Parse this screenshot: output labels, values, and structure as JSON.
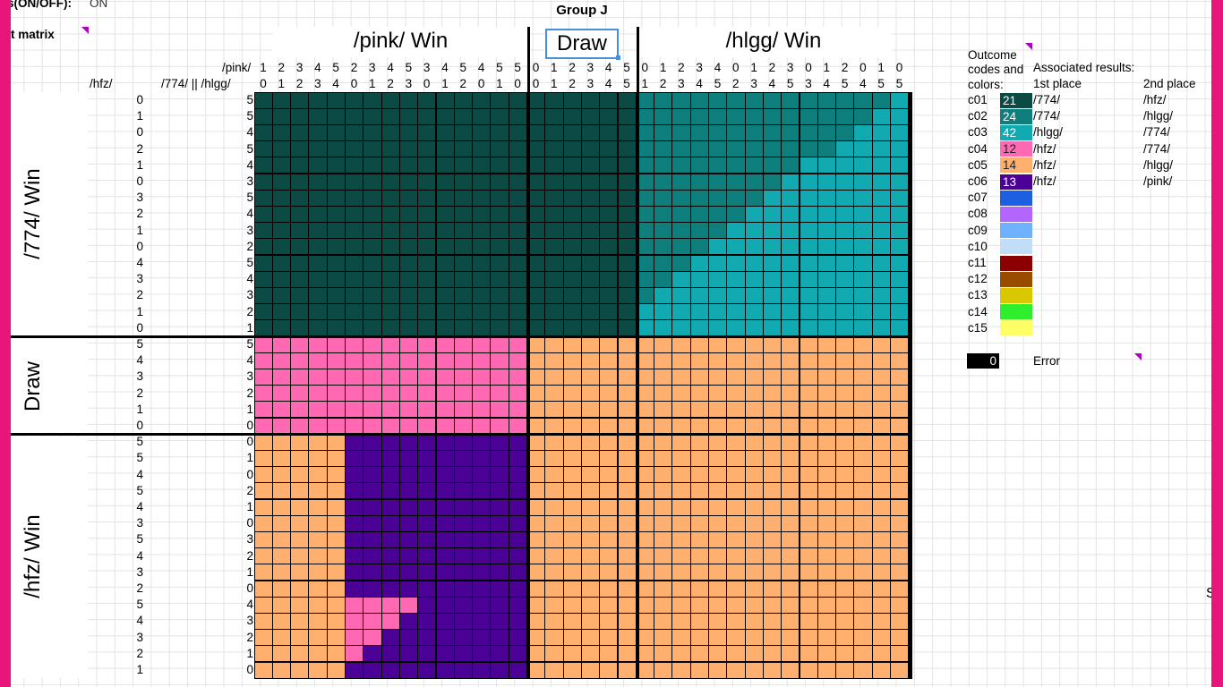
{
  "sheet": {
    "header_left_label": "s(ON/OFF):",
    "header_left_value": "ON",
    "matrix_label": "t matrix",
    "group_title": "Group J",
    "col_headers": {
      "pink": "/pink/ Win",
      "draw": "Draw",
      "hlgg": "/hlgg/ Win"
    },
    "row_headers": {
      "t774": "/774/ Win",
      "draw": "Draw",
      "hfz": "/hfz/ Win"
    },
    "label_pink": "/pink/",
    "label_hfz": "/hfz/",
    "label_774_hlgg": "/774/ || /hlgg/",
    "col_top": [
      1,
      2,
      3,
      4,
      5,
      2,
      3,
      4,
      5,
      3,
      4,
      5,
      4,
      5,
      5,
      0,
      1,
      2,
      3,
      4,
      5,
      0,
      1,
      2,
      3,
      4,
      0,
      1,
      2,
      3,
      0,
      1,
      2,
      0,
      1,
      0
    ],
    "col_bottom": [
      0,
      1,
      2,
      3,
      4,
      0,
      1,
      2,
      3,
      0,
      1,
      2,
      0,
      1,
      0,
      0,
      1,
      2,
      3,
      4,
      5,
      1,
      2,
      3,
      4,
      5,
      2,
      3,
      4,
      5,
      3,
      4,
      5,
      4,
      5,
      5
    ],
    "row_hfz": [
      0,
      1,
      0,
      2,
      1,
      0,
      3,
      2,
      1,
      0,
      4,
      3,
      2,
      1,
      0,
      5,
      4,
      3,
      2,
      1,
      0,
      5,
      5,
      4,
      5,
      4,
      3,
      5,
      4,
      3,
      2,
      5,
      4,
      3,
      2,
      1
    ],
    "row_774hlgg": [
      5,
      5,
      4,
      5,
      4,
      3,
      5,
      4,
      3,
      2,
      5,
      4,
      3,
      2,
      1,
      5,
      4,
      3,
      2,
      1,
      0,
      0,
      1,
      0,
      2,
      1,
      0,
      3,
      2,
      1,
      0,
      4,
      3,
      2,
      1,
      0
    ]
  },
  "legend": {
    "title_line1": "Outcome",
    "title_line2": "codes and",
    "title_line3": "colors:",
    "assoc_title": "Associated results:",
    "first_place": "1st place",
    "second_place": "2nd place",
    "items": [
      {
        "code": "c01",
        "color": "#0b4a45",
        "count": "21",
        "first": "/774/",
        "second": "/hfz/"
      },
      {
        "code": "c02",
        "color": "#0e7f7d",
        "count": "24",
        "first": "/774/",
        "second": "/hlgg/"
      },
      {
        "code": "c03",
        "color": "#11aab1",
        "count": "42",
        "first": "/hlgg/",
        "second": "/774/"
      },
      {
        "code": "c04",
        "color": "#ff69b4",
        "count": "12",
        "first": "/hfz/",
        "second": "/774/"
      },
      {
        "code": "c05",
        "color": "#ffb06e",
        "count": "14",
        "first": "/hfz/",
        "second": "/hlgg/"
      },
      {
        "code": "c06",
        "color": "#4b0096",
        "count": "13",
        "first": "/hfz/",
        "second": "/pink/"
      },
      {
        "code": "c07",
        "color": "#1c5fe0",
        "count": "",
        "first": "",
        "second": ""
      },
      {
        "code": "c08",
        "color": "#b266ff",
        "count": "",
        "first": "",
        "second": ""
      },
      {
        "code": "c09",
        "color": "#6eb2ff",
        "count": "",
        "first": "",
        "second": ""
      },
      {
        "code": "c10",
        "color": "#c2ddf8",
        "count": "",
        "first": "",
        "second": ""
      },
      {
        "code": "c11",
        "color": "#8b0000",
        "count": "",
        "first": "",
        "second": ""
      },
      {
        "code": "c12",
        "color": "#994c00",
        "count": "",
        "first": "",
        "second": ""
      },
      {
        "code": "c13",
        "color": "#d9c800",
        "count": "",
        "first": "",
        "second": ""
      },
      {
        "code": "c14",
        "color": "#2eee2e",
        "count": "",
        "first": "",
        "second": ""
      },
      {
        "code": "c15",
        "color": "#ffff66",
        "count": "",
        "first": "",
        "second": ""
      }
    ],
    "error_count": "0",
    "error_label": "Error"
  },
  "side_text": "Sy"
}
